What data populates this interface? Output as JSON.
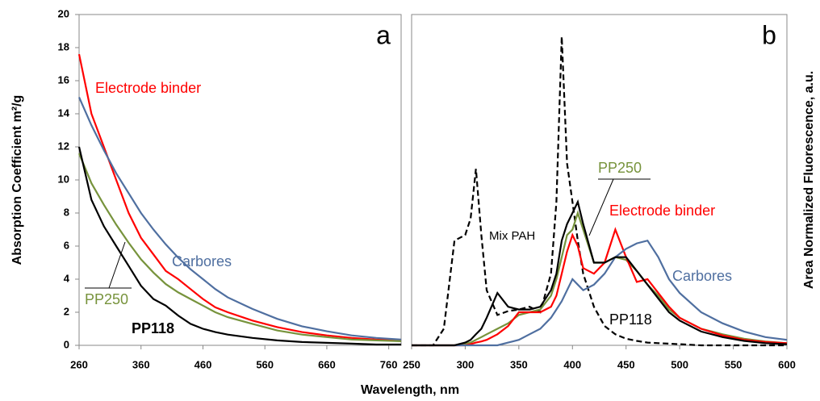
{
  "chart_data": [
    {
      "type": "line",
      "panel_label": "a",
      "ylabel": "Absorption Coefficient m²/g",
      "xlabel": "Wavelength, nm",
      "xlim": [
        260,
        780
      ],
      "ylim": [
        0,
        20
      ],
      "xticks": [
        260,
        360,
        460,
        560,
        660,
        760
      ],
      "yticks": [
        0,
        2,
        4,
        6,
        8,
        10,
        12,
        14,
        16,
        18,
        20
      ],
      "x": [
        260,
        280,
        300,
        320,
        340,
        360,
        380,
        400,
        420,
        440,
        460,
        480,
        500,
        540,
        580,
        620,
        660,
        700,
        740,
        780
      ],
      "series": [
        {
          "name": "Electrode binder",
          "color": "#ff0000",
          "values": [
            17.6,
            14,
            12,
            10,
            8,
            6.5,
            5.5,
            4.5,
            4,
            3.4,
            2.8,
            2.3,
            2,
            1.5,
            1.1,
            0.8,
            0.6,
            0.45,
            0.35,
            0.3
          ]
        },
        {
          "name": "Carbores",
          "color": "#4f6fa0",
          "values": [
            15,
            13.3,
            11.8,
            10.4,
            9.2,
            8,
            7,
            6.1,
            5.3,
            4.6,
            4,
            3.4,
            2.9,
            2.2,
            1.6,
            1.15,
            0.85,
            0.6,
            0.45,
            0.35
          ]
        },
        {
          "name": "PP250",
          "color": "#77933c",
          "values": [
            11.6,
            9.8,
            8.5,
            7.3,
            6.2,
            5.2,
            4.4,
            3.7,
            3.2,
            2.8,
            2.4,
            2,
            1.7,
            1.3,
            0.9,
            0.65,
            0.5,
            0.35,
            0.3,
            0.25
          ]
        },
        {
          "name": "PP118",
          "color": "#000000",
          "values": [
            12,
            8.8,
            7.2,
            6,
            4.8,
            3.6,
            2.8,
            2.4,
            1.8,
            1.3,
            1,
            0.8,
            0.65,
            0.45,
            0.3,
            0.2,
            0.15,
            0.1,
            0.05,
            0.05
          ]
        }
      ]
    },
    {
      "type": "line",
      "panel_label": "b",
      "ylabel": "Area Normalized Fluorescence, a.u.",
      "xlim": [
        250,
        600
      ],
      "ylim": [
        0,
        6
      ],
      "xticks": [
        250,
        300,
        350,
        400,
        450,
        500,
        550,
        600
      ],
      "x": [
        250,
        260,
        270,
        280,
        290,
        300,
        305,
        310,
        315,
        320,
        330,
        340,
        350,
        360,
        370,
        380,
        385,
        390,
        395,
        400,
        405,
        410,
        420,
        430,
        440,
        450,
        460,
        470,
        480,
        490,
        500,
        520,
        540,
        560,
        580,
        600
      ],
      "series": [
        {
          "name": "Mix PAH",
          "color": "#000000",
          "dashed": true,
          "values": [
            0,
            0,
            0,
            0.3,
            1.9,
            2,
            2.3,
            3.2,
            2,
            1,
            0.55,
            0.62,
            0.65,
            0.7,
            0.6,
            1.3,
            2.6,
            5.6,
            3.3,
            2.6,
            1.9,
            1.3,
            0.7,
            0.35,
            0.2,
            0.12,
            0.08,
            0.05,
            0.04,
            0.03,
            0.02,
            0,
            0,
            0,
            0,
            0
          ]
        },
        {
          "name": "PP250",
          "color": "#77933c",
          "values": [
            0,
            0,
            0,
            0,
            0,
            0.03,
            0.05,
            0.1,
            0.15,
            0.2,
            0.3,
            0.4,
            0.55,
            0.6,
            0.65,
            0.9,
            1.2,
            1.6,
            2,
            2.1,
            2.4,
            2.1,
            1.5,
            1.5,
            1.6,
            1.55,
            1.35,
            1.1,
            0.9,
            0.65,
            0.5,
            0.3,
            0.2,
            0.12,
            0.07,
            0.04
          ]
        },
        {
          "name": "Electrode binder",
          "color": "#ff0000",
          "values": [
            0,
            0,
            0,
            0,
            0,
            0,
            0.02,
            0.05,
            0.07,
            0.1,
            0.2,
            0.35,
            0.6,
            0.6,
            0.6,
            0.7,
            0.9,
            1.3,
            1.7,
            2,
            1.8,
            1.4,
            1.3,
            1.5,
            2.1,
            1.6,
            1.15,
            1.2,
            0.95,
            0.7,
            0.5,
            0.3,
            0.18,
            0.1,
            0.06,
            0.04
          ]
        },
        {
          "name": "Carbores",
          "color": "#4f6fa0",
          "values": [
            0,
            0,
            0,
            0,
            0,
            0,
            0,
            0,
            0,
            0,
            0,
            0.05,
            0.1,
            0.2,
            0.3,
            0.5,
            0.65,
            0.8,
            1,
            1.2,
            1.1,
            1,
            1.1,
            1.3,
            1.6,
            1.75,
            1.85,
            1.9,
            1.6,
            1.2,
            0.95,
            0.6,
            0.4,
            0.25,
            0.15,
            0.1
          ]
        },
        {
          "name": "PP118",
          "color": "#000000",
          "values": [
            0,
            0,
            0,
            0,
            0,
            0.05,
            0.1,
            0.2,
            0.3,
            0.5,
            0.95,
            0.7,
            0.65,
            0.65,
            0.7,
            1,
            1.3,
            1.9,
            2.2,
            2.4,
            2.6,
            2.2,
            1.5,
            1.5,
            1.6,
            1.6,
            1.35,
            1.1,
            0.85,
            0.6,
            0.45,
            0.25,
            0.15,
            0.08,
            0.04,
            0.02
          ]
        }
      ]
    }
  ]
}
